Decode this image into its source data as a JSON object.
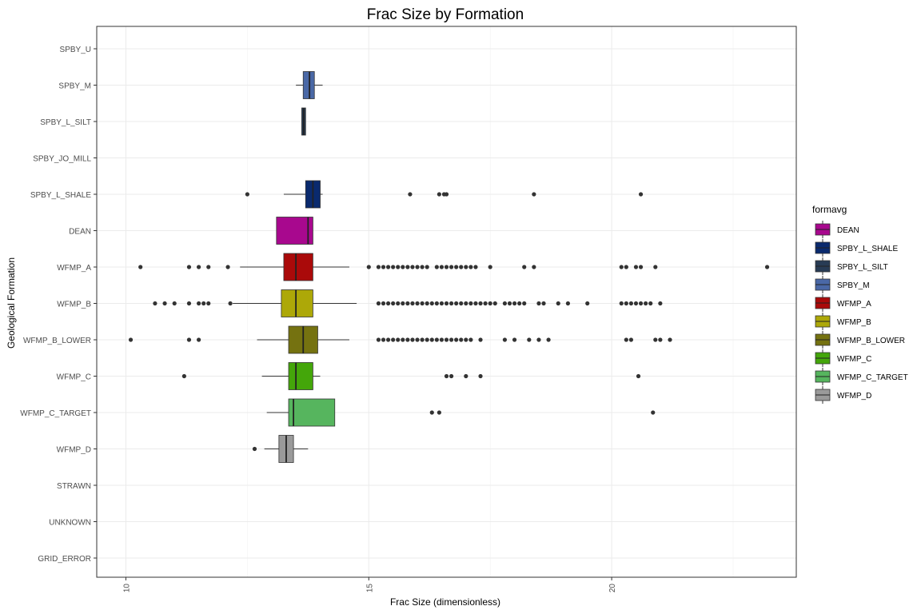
{
  "chart_data": {
    "type": "boxplot",
    "orientation": "horizontal",
    "title": "Frac Size by Formation",
    "xlabel": "Frac Size (dimensionless)",
    "ylabel": "Geological Formation",
    "xlim": [
      9.4,
      23.8
    ],
    "x_ticks": [
      10,
      15,
      20
    ],
    "grid": true,
    "legend": {
      "title": "formavg",
      "position": "right",
      "items": [
        {
          "name": "DEAN",
          "color": "#A8088E"
        },
        {
          "name": "SPBY_L_SHALE",
          "color": "#0A2A6E"
        },
        {
          "name": "SPBY_L_SILT",
          "color": "#283C55"
        },
        {
          "name": "SPBY_M",
          "color": "#4A68A6"
        },
        {
          "name": "WFMP_A",
          "color": "#AA0A0A"
        },
        {
          "name": "WFMP_B",
          "color": "#ADA808"
        },
        {
          "name": "WFMP_B_LOWER",
          "color": "#757210"
        },
        {
          "name": "WFMP_C",
          "color": "#44A60A"
        },
        {
          "name": "WFMP_C_TARGET",
          "color": "#56B55E"
        },
        {
          "name": "WFMP_D",
          "color": "#9A9A9A"
        }
      ]
    },
    "categories": [
      "SPBY_U",
      "SPBY_M",
      "SPBY_L_SILT",
      "SPBY_JO_MILL",
      "SPBY_L_SHALE",
      "DEAN",
      "WFMP_A",
      "WFMP_B",
      "WFMP_B_LOWER",
      "WFMP_C",
      "WFMP_C_TARGET",
      "WFMP_D",
      "STRAWN",
      "UNKNOWN",
      "GRID_ERROR"
    ],
    "boxes": [
      {
        "category": "SPBY_M",
        "whisker_low": 13.5,
        "q1": 13.65,
        "median": 13.78,
        "q3": 13.88,
        "whisker_high": 14.05,
        "outliers": [],
        "color": "#4A68A6"
      },
      {
        "category": "SPBY_L_SILT",
        "whisker_low": 13.62,
        "q1": 13.62,
        "median": 13.66,
        "q3": 13.7,
        "whisker_high": 13.7,
        "outliers": [],
        "color": "#283C55"
      },
      {
        "category": "SPBY_L_SHALE",
        "whisker_low": 13.25,
        "q1": 13.7,
        "median": 13.85,
        "q3": 14.0,
        "whisker_high": 14.05,
        "outliers": [
          12.5,
          15.85,
          16.45,
          16.55,
          16.6,
          18.4,
          20.6
        ],
        "color": "#0A2A6E"
      },
      {
        "category": "DEAN",
        "whisker_low": 13.1,
        "q1": 13.1,
        "median": 13.75,
        "q3": 13.85,
        "whisker_high": 13.85,
        "outliers": [],
        "color": "#A8088E"
      },
      {
        "category": "WFMP_A",
        "whisker_low": 12.35,
        "q1": 13.25,
        "median": 13.5,
        "q3": 13.85,
        "whisker_high": 14.6,
        "outliers": [
          10.3,
          11.3,
          11.5,
          11.7,
          12.1,
          15.0,
          15.2,
          15.3,
          15.4,
          15.5,
          15.6,
          15.7,
          15.8,
          15.9,
          16.0,
          16.1,
          16.2,
          16.4,
          16.5,
          16.6,
          16.7,
          16.8,
          16.9,
          17.0,
          17.1,
          17.2,
          17.5,
          18.2,
          18.4,
          20.2,
          20.3,
          20.5,
          20.6,
          20.9,
          23.2
        ],
        "color": "#AA0A0A"
      },
      {
        "category": "WFMP_B",
        "whisker_low": 12.2,
        "q1": 13.2,
        "median": 13.5,
        "q3": 13.85,
        "whisker_high": 14.75,
        "outliers": [
          10.6,
          10.8,
          11.0,
          11.3,
          11.5,
          11.6,
          11.7,
          12.15,
          15.2,
          15.3,
          15.4,
          15.5,
          15.6,
          15.7,
          15.8,
          15.9,
          16.0,
          16.1,
          16.2,
          16.3,
          16.4,
          16.5,
          16.6,
          16.7,
          16.8,
          16.9,
          17.0,
          17.1,
          17.2,
          17.3,
          17.4,
          17.5,
          17.6,
          17.8,
          17.9,
          18.0,
          18.1,
          18.2,
          18.5,
          18.6,
          18.9,
          19.1,
          19.5,
          20.2,
          20.3,
          20.4,
          20.5,
          20.6,
          20.7,
          20.8,
          21.0
        ],
        "color": "#ADA808"
      },
      {
        "category": "WFMP_B_LOWER",
        "whisker_low": 12.7,
        "q1": 13.35,
        "median": 13.65,
        "q3": 13.95,
        "whisker_high": 14.6,
        "outliers": [
          10.1,
          11.3,
          11.5,
          15.2,
          15.3,
          15.4,
          15.5,
          15.6,
          15.7,
          15.8,
          15.9,
          16.0,
          16.1,
          16.2,
          16.3,
          16.4,
          16.5,
          16.6,
          16.7,
          16.8,
          16.9,
          17.0,
          17.1,
          17.3,
          17.8,
          18.0,
          18.3,
          18.5,
          18.7,
          20.3,
          20.4,
          20.9,
          21.0,
          21.2
        ],
        "color": "#757210"
      },
      {
        "category": "WFMP_C",
        "whisker_low": 12.8,
        "q1": 13.35,
        "median": 13.5,
        "q3": 13.85,
        "whisker_high": 14.0,
        "outliers": [
          11.2,
          16.6,
          16.7,
          17.0,
          17.3,
          20.55
        ],
        "color": "#44A60A"
      },
      {
        "category": "WFMP_C_TARGET",
        "whisker_low": 12.9,
        "q1": 13.35,
        "median": 13.45,
        "q3": 14.3,
        "whisker_high": 14.3,
        "outliers": [
          16.3,
          16.45,
          20.85
        ],
        "color": "#56B55E"
      },
      {
        "category": "WFMP_D",
        "whisker_low": 12.85,
        "q1": 13.15,
        "median": 13.3,
        "q3": 13.45,
        "whisker_high": 13.75,
        "outliers": [
          12.65
        ],
        "color": "#9A9A9A"
      }
    ]
  }
}
